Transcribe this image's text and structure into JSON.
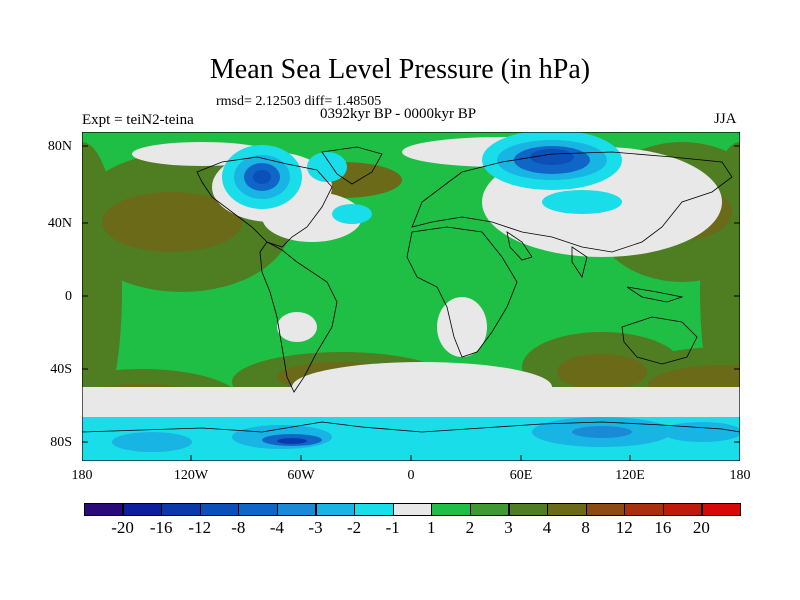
{
  "header": {
    "title": "Mean Sea Level Pressure (in hPa)",
    "stats": "rmsd= 2.12503  diff= 1.48505",
    "period": "0392kyr BP - 0000kyr BP",
    "experiment": "Expt = teiN2-teina",
    "season": "JJA"
  },
  "axes": {
    "lat_labels": [
      "80N",
      "40N",
      "0",
      "40S",
      "80S"
    ],
    "lon_labels": [
      "180",
      "120W",
      "60W",
      "0",
      "60E",
      "120E",
      "180"
    ]
  },
  "colorbar": {
    "labels": [
      "-20",
      "-16",
      "-12",
      "-8",
      "-4",
      "-3",
      "-2",
      "-1",
      "1",
      "2",
      "3",
      "4",
      "8",
      "12",
      "16",
      "20"
    ],
    "colors": [
      "#2a0a78",
      "#0d1f9c",
      "#0a3aaa",
      "#0b4fb8",
      "#0f66c6",
      "#1a8ad6",
      "#18b4e4",
      "#19dde8",
      "#e8e8e8",
      "#1fbf46",
      "#3c9a30",
      "#4f7d22",
      "#6a6a18",
      "#8b4b12",
      "#a8300c",
      "#c01a0a",
      "#d80808"
    ]
  }
}
